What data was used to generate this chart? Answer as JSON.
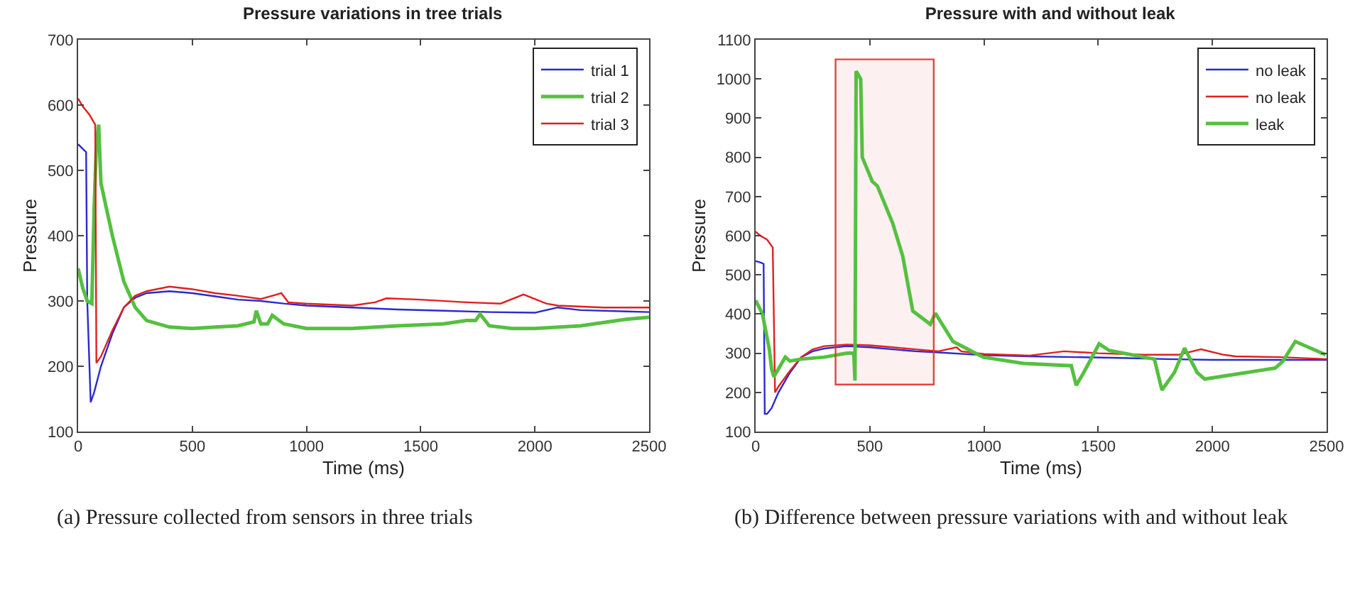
{
  "chart_data": [
    {
      "type": "line",
      "title": "Pressure variations in tree trials",
      "xlabel": "Time (ms)",
      "ylabel": "Pressure",
      "xlim": [
        0,
        2500
      ],
      "xticks": [
        0,
        500,
        1000,
        1500,
        2000,
        2500
      ],
      "ylim": [
        100,
        700
      ],
      "yticks": [
        100,
        200,
        300,
        400,
        500,
        600,
        700
      ],
      "legend": "top right",
      "grid": false,
      "annotations": [
        "(a)  Pressure collected from sensors in three trials"
      ],
      "series": [
        {
          "name": "trial 1",
          "color": "#2a2ad0",
          "x": [
            0,
            20,
            35,
            40,
            55,
            70,
            100,
            150,
            200,
            250,
            300,
            400,
            500,
            600,
            700,
            800,
            900,
            1000,
            1200,
            1400,
            1600,
            1800,
            2000,
            2100,
            2200,
            2400,
            2500
          ],
          "values": [
            540,
            533,
            528,
            300,
            145,
            160,
            200,
            250,
            290,
            305,
            312,
            315,
            312,
            307,
            302,
            300,
            296,
            293,
            290,
            287,
            285,
            283,
            282,
            290,
            286,
            284,
            283
          ]
        },
        {
          "name": "trial 2",
          "color": "#55c040",
          "x": [
            0,
            20,
            40,
            60,
            70,
            80,
            90,
            100,
            150,
            200,
            250,
            300,
            400,
            500,
            600,
            700,
            770,
            780,
            800,
            830,
            850,
            900,
            1000,
            1200,
            1400,
            1600,
            1700,
            1740,
            1760,
            1800,
            1900,
            2000,
            2200,
            2400,
            2500
          ],
          "values": [
            350,
            320,
            300,
            296,
            440,
            540,
            570,
            480,
            400,
            330,
            290,
            270,
            260,
            258,
            260,
            262,
            268,
            285,
            265,
            265,
            278,
            265,
            258,
            258,
            262,
            265,
            270,
            270,
            280,
            262,
            258,
            258,
            262,
            272,
            275
          ]
        },
        {
          "name": "trial 3",
          "color": "#e02020",
          "x": [
            0,
            20,
            50,
            75,
            80,
            100,
            150,
            200,
            250,
            300,
            400,
            500,
            600,
            700,
            800,
            870,
            890,
            920,
            1000,
            1200,
            1300,
            1350,
            1500,
            1700,
            1850,
            1950,
            2050,
            2100,
            2300,
            2500
          ],
          "values": [
            610,
            598,
            585,
            570,
            205,
            215,
            255,
            290,
            308,
            315,
            322,
            318,
            312,
            308,
            303,
            310,
            312,
            298,
            296,
            293,
            298,
            304,
            302,
            298,
            296,
            310,
            296,
            293,
            290,
            290
          ]
        }
      ]
    },
    {
      "type": "line",
      "title": "Pressure with and without leak",
      "xlabel": "Time (ms)",
      "ylabel": "Pressure",
      "xlim": [
        0,
        2500
      ],
      "xticks": [
        0,
        500,
        1000,
        1500,
        2000,
        2500
      ],
      "ylim": [
        100,
        1100
      ],
      "yticks": [
        100,
        200,
        300,
        400,
        500,
        600,
        700,
        800,
        900,
        1000,
        1100
      ],
      "legend": "top right",
      "grid": false,
      "annotations": [
        "(b)  Difference between pressure variations with and without leak"
      ],
      "bands": [
        {
          "axis": "x",
          "from": 350,
          "to": 780,
          "color": "#e03030"
        }
      ],
      "series": [
        {
          "name": "no leak",
          "color": "#2a2ad0",
          "x": [
            0,
            20,
            35,
            40,
            50,
            70,
            100,
            150,
            200,
            250,
            300,
            400,
            500,
            600,
            700,
            800,
            1000,
            1200,
            1400,
            1600,
            1800,
            2000,
            2200,
            2500
          ],
          "values": [
            535,
            532,
            528,
            145,
            145,
            160,
            200,
            250,
            290,
            305,
            312,
            318,
            315,
            310,
            305,
            302,
            295,
            292,
            290,
            288,
            285,
            283,
            283,
            283
          ]
        },
        {
          "name": "no leak",
          "color": "#e02020",
          "x": [
            0,
            20,
            50,
            75,
            85,
            100,
            150,
            200,
            250,
            300,
            400,
            500,
            600,
            700,
            800,
            880,
            900,
            1000,
            1200,
            1350,
            1500,
            1700,
            1850,
            1950,
            2050,
            2100,
            2300,
            2500
          ],
          "values": [
            610,
            600,
            590,
            570,
            200,
            215,
            255,
            290,
            310,
            318,
            322,
            320,
            315,
            310,
            305,
            315,
            305,
            298,
            294,
            305,
            300,
            296,
            296,
            310,
            296,
            292,
            290,
            285
          ]
        },
        {
          "name": "leak",
          "color": "#55c040",
          "x": [
            0,
            30,
            60,
            70,
            80,
            130,
            150,
            200,
            300,
            400,
            430,
            435,
            440,
            460,
            467,
            511,
            533,
            600,
            644,
            688,
            765,
            787,
            864,
            996,
            1173,
            1382,
            1404,
            1437,
            1504,
            1548,
            1746,
            1779,
            1834,
            1878,
            1933,
            1966,
            2275,
            2308,
            2363,
            2430,
            2496
          ],
          "values": [
            435,
            400,
            310,
            260,
            240,
            290,
            280,
            285,
            290,
            300,
            300,
            230,
            1020,
            1000,
            800,
            738,
            727,
            632,
            548,
            408,
            374,
            402,
            330,
            290,
            274,
            268,
            218,
            251,
            324,
            307,
            285,
            206,
            251,
            313,
            251,
            234,
            262,
            279,
            330,
            313,
            296
          ]
        }
      ]
    }
  ]
}
